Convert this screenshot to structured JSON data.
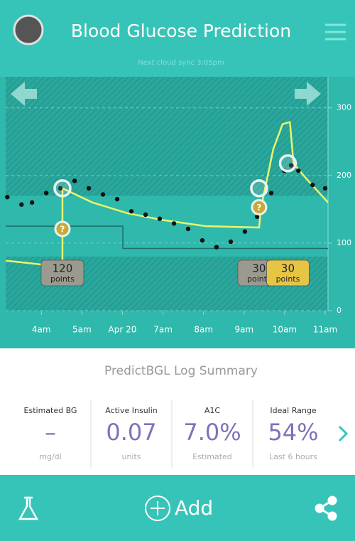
{
  "header": {
    "title": "Blood Glucose Prediction",
    "sync": "Next cloud sync 3:05pm"
  },
  "chart_data": {
    "type": "line",
    "xlim": [
      3.12,
      11.07
    ],
    "xticks": [
      {
        "value": 4,
        "label": "4am"
      },
      {
        "value": 5,
        "label": "5am"
      },
      {
        "value": 6,
        "label": "Apr 20"
      },
      {
        "value": 7,
        "label": "7am"
      },
      {
        "value": 8,
        "label": "8am"
      },
      {
        "value": 9,
        "label": "9am"
      },
      {
        "value": 10,
        "label": "10am"
      },
      {
        "value": 11,
        "label": "11am"
      }
    ],
    "ylim": [
      0,
      346
    ],
    "yticks": [
      0,
      100,
      200,
      300
    ],
    "grid": true,
    "target_range": [
      80,
      170
    ],
    "series": [
      {
        "type": "step",
        "color": "#1f6f68",
        "x": [
          3.12,
          6.01,
          6.01,
          11.07
        ],
        "values": [
          125,
          125,
          92,
          92
        ]
      },
      {
        "type": "line",
        "color": "#e9f56a",
        "x": [
          3.12,
          4.52,
          4.52,
          5.26,
          6.13,
          7.01,
          8.06,
          9.37,
          9.42,
          9.72,
          9.95,
          10.13,
          10.22,
          10.51,
          11.07
        ],
        "values": [
          74,
          65,
          181,
          160,
          144,
          134,
          125,
          123,
          153,
          239,
          276,
          279,
          218,
          197,
          160
        ]
      },
      {
        "type": "scatter",
        "color": "#111111",
        "x": [
          3.16,
          3.51,
          3.77,
          4.12,
          4.47,
          4.82,
          5.17,
          5.52,
          5.87,
          6.22,
          6.57,
          6.92,
          7.27,
          7.62,
          7.97,
          8.32,
          8.67,
          9.02,
          9.32,
          9.67,
          9.99,
          10.16,
          10.34,
          10.69,
          11.0
        ],
        "values": [
          168,
          157,
          160,
          174,
          181,
          192,
          181,
          172,
          165,
          147,
          142,
          136,
          129,
          121,
          104,
          94,
          102,
          117,
          139,
          174,
          207,
          215,
          207,
          186,
          181
        ]
      }
    ],
    "markers": [
      {
        "x": 4.52,
        "value": 181
      },
      {
        "x": 9.37,
        "value": 181
      },
      {
        "x": 10.08,
        "value": 218
      }
    ],
    "events": [
      {
        "x": 4.52,
        "value": 121,
        "label": "?"
      },
      {
        "x": 9.37,
        "value": 153,
        "label": "?"
      }
    ],
    "annotations": [
      {
        "x": 4.52,
        "value": "120",
        "unit": "points",
        "color": "#9a9a8e"
      },
      {
        "x": 9.37,
        "value": "30",
        "unit": "points",
        "color": "#9a9a8e"
      },
      {
        "x": 10.08,
        "value": "30",
        "unit": "points",
        "color": "#e6c444"
      }
    ]
  },
  "summary": {
    "title": "PredictBGL Log Summary",
    "items": [
      {
        "label": "Estimated BG",
        "value": "–",
        "unit": "mg/dl"
      },
      {
        "label": "Active Insulin",
        "value": "0.07",
        "unit": "units"
      },
      {
        "label": "A1C",
        "value": "7.0%",
        "unit": "Estimated"
      },
      {
        "label": "Ideal Range",
        "value": "54%",
        "unit": "Last 6 hours"
      }
    ]
  },
  "toolbar": {
    "add": "Add"
  }
}
